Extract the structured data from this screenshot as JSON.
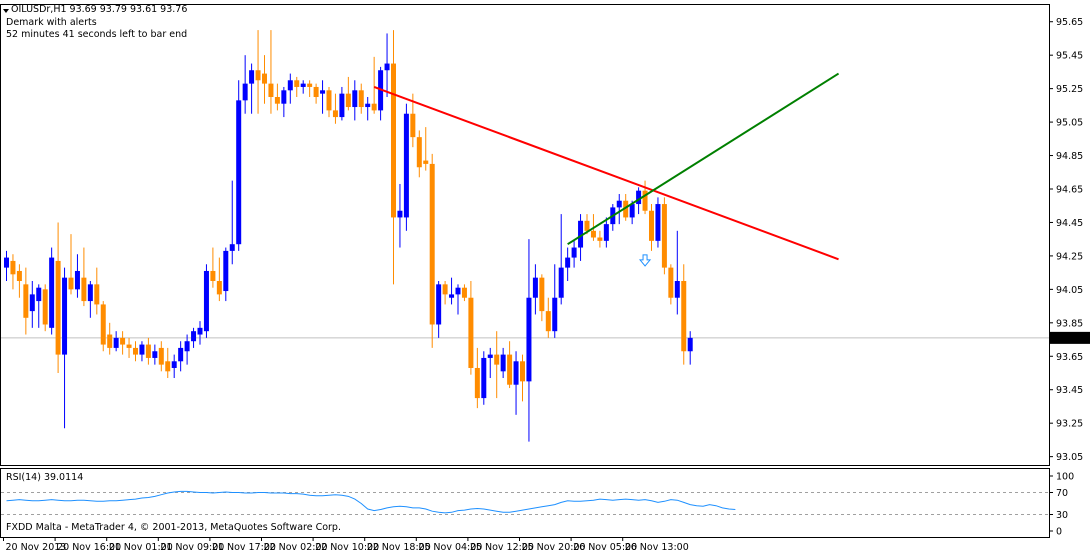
{
  "header": {
    "symbol_line": "OILUSDr,H1  93.69 93.79 93.61 93.76",
    "indicator": "Demark with alerts",
    "timer": "52 minutes 41 seconds left to bar end"
  },
  "rsi": {
    "title": "RSI(14) 39.0114",
    "levels": [
      "100",
      "70",
      "30",
      "0"
    ],
    "level_values": [
      100,
      70,
      30,
      0
    ],
    "values": [
      55,
      56,
      57,
      56,
      55,
      55,
      56,
      57,
      56,
      55,
      55,
      56,
      56,
      55,
      54,
      54,
      55,
      55,
      56,
      57,
      58,
      60,
      61,
      63,
      66,
      69,
      71,
      72,
      72,
      71,
      70,
      70,
      69,
      70,
      71,
      70,
      70,
      69,
      69,
      70,
      70,
      69,
      69,
      69,
      68,
      68,
      67,
      65,
      64,
      64,
      65,
      66,
      65,
      63,
      58,
      50,
      40,
      37,
      39,
      42,
      44,
      45,
      44,
      42,
      42,
      40,
      36,
      34,
      33,
      34,
      37,
      38,
      40,
      41,
      40,
      38,
      36,
      34,
      34,
      36,
      38,
      40,
      42,
      44,
      46,
      48,
      52,
      55,
      54,
      54,
      55,
      56,
      58,
      57,
      56,
      57,
      58,
      57,
      56,
      57,
      55,
      52,
      54,
      57,
      56,
      52,
      48,
      46,
      45,
      48,
      46,
      42,
      40,
      39
    ],
    "series_color": "#1e90ff",
    "level_color": "#a0a0a0"
  },
  "copyright": "FXDD Malta - MetaTrader 4, © 2001-2013, MetaQuotes Software Corp.",
  "colors": {
    "bull": "#0000ff",
    "bear": "#ff8c00",
    "trend_red": "#ff0000",
    "trend_green": "#008000",
    "price_line": "#c0c0c0",
    "current_price_bg": "#000000",
    "arrow": "#1e90ff"
  },
  "chart_data": {
    "type": "candlestick",
    "symbol": "OILUSDr",
    "timeframe": "H1",
    "y_ticks": [
      "95.65",
      "95.45",
      "95.25",
      "95.05",
      "94.85",
      "94.65",
      "94.45",
      "94.25",
      "94.05",
      "93.85",
      "93.65",
      "93.45",
      "93.25",
      "93.05"
    ],
    "ylim": [
      93.0,
      95.75
    ],
    "current_price": 93.76,
    "current_price_label": "93.76",
    "x_ticks": [
      "20 Nov 2013",
      "20 Nov 16:00",
      "21 Nov 01:00",
      "21 Nov 09:00",
      "21 Nov 17:00",
      "22 Nov 02:00",
      "22 Nov 10:00",
      "22 Nov 18:00",
      "25 Nov 04:00",
      "25 Nov 12:00",
      "25 Nov 20:00",
      "26 Nov 05:00",
      "26 Nov 13:00"
    ],
    "x_tick_index": [
      0,
      8,
      16,
      24,
      32,
      40,
      48,
      56,
      64,
      72,
      80,
      88,
      96
    ],
    "bars": [
      {
        "o": 94.18,
        "h": 94.28,
        "l": 94.1,
        "c": 94.24
      },
      {
        "o": 94.22,
        "h": 94.26,
        "l": 94.05,
        "c": 94.14
      },
      {
        "o": 94.16,
        "h": 94.2,
        "l": 94.0,
        "c": 94.1
      },
      {
        "o": 94.08,
        "h": 94.18,
        "l": 93.78,
        "c": 93.88
      },
      {
        "o": 93.92,
        "h": 94.1,
        "l": 93.82,
        "c": 94.02
      },
      {
        "o": 93.98,
        "h": 94.08,
        "l": 93.82,
        "c": 94.06
      },
      {
        "o": 94.05,
        "h": 94.08,
        "l": 93.8,
        "c": 93.84
      },
      {
        "o": 93.82,
        "h": 94.3,
        "l": 93.78,
        "c": 94.24
      },
      {
        "o": 94.22,
        "h": 94.45,
        "l": 93.55,
        "c": 93.66
      },
      {
        "o": 93.66,
        "h": 94.18,
        "l": 93.22,
        "c": 94.12
      },
      {
        "o": 94.12,
        "h": 94.38,
        "l": 94.02,
        "c": 94.05
      },
      {
        "o": 94.05,
        "h": 94.26,
        "l": 94.0,
        "c": 94.16
      },
      {
        "o": 94.12,
        "h": 94.3,
        "l": 93.95,
        "c": 93.98
      },
      {
        "o": 93.98,
        "h": 94.1,
        "l": 93.88,
        "c": 94.08
      },
      {
        "o": 94.08,
        "h": 94.18,
        "l": 93.9,
        "c": 93.96
      },
      {
        "o": 93.96,
        "h": 93.98,
        "l": 93.68,
        "c": 93.72
      },
      {
        "o": 93.78,
        "h": 93.85,
        "l": 93.66,
        "c": 93.7
      },
      {
        "o": 93.7,
        "h": 93.8,
        "l": 93.68,
        "c": 93.76
      },
      {
        "o": 93.76,
        "h": 93.8,
        "l": 93.66,
        "c": 93.72
      },
      {
        "o": 93.72,
        "h": 93.76,
        "l": 93.64,
        "c": 93.7
      },
      {
        "o": 93.7,
        "h": 93.74,
        "l": 93.62,
        "c": 93.66
      },
      {
        "o": 93.66,
        "h": 93.74,
        "l": 93.62,
        "c": 93.72
      },
      {
        "o": 93.72,
        "h": 93.76,
        "l": 93.6,
        "c": 93.64
      },
      {
        "o": 93.64,
        "h": 93.72,
        "l": 93.6,
        "c": 93.68
      },
      {
        "o": 93.7,
        "h": 93.74,
        "l": 93.56,
        "c": 93.6
      },
      {
        "o": 93.62,
        "h": 93.7,
        "l": 93.52,
        "c": 93.56
      },
      {
        "o": 93.58,
        "h": 93.66,
        "l": 93.52,
        "c": 93.62
      },
      {
        "o": 93.62,
        "h": 93.74,
        "l": 93.56,
        "c": 93.7
      },
      {
        "o": 93.68,
        "h": 93.78,
        "l": 93.6,
        "c": 93.74
      },
      {
        "o": 93.74,
        "h": 93.82,
        "l": 93.7,
        "c": 93.8
      },
      {
        "o": 93.78,
        "h": 93.86,
        "l": 93.72,
        "c": 93.82
      },
      {
        "o": 93.8,
        "h": 94.2,
        "l": 93.76,
        "c": 94.16
      },
      {
        "o": 94.16,
        "h": 94.3,
        "l": 94.06,
        "c": 94.1
      },
      {
        "o": 94.1,
        "h": 94.24,
        "l": 93.98,
        "c": 94.02
      },
      {
        "o": 94.04,
        "h": 94.3,
        "l": 93.98,
        "c": 94.28
      },
      {
        "o": 94.28,
        "h": 94.7,
        "l": 94.2,
        "c": 94.32
      },
      {
        "o": 94.32,
        "h": 95.3,
        "l": 94.28,
        "c": 95.18
      },
      {
        "o": 95.18,
        "h": 95.45,
        "l": 95.1,
        "c": 95.28
      },
      {
        "o": 95.28,
        "h": 95.4,
        "l": 95.1,
        "c": 95.36
      },
      {
        "o": 95.36,
        "h": 95.6,
        "l": 95.1,
        "c": 95.3
      },
      {
        "o": 95.34,
        "h": 95.45,
        "l": 95.16,
        "c": 95.28
      },
      {
        "o": 95.28,
        "h": 95.6,
        "l": 95.1,
        "c": 95.2
      },
      {
        "o": 95.2,
        "h": 95.28,
        "l": 95.12,
        "c": 95.16
      },
      {
        "o": 95.16,
        "h": 95.26,
        "l": 95.08,
        "c": 95.24
      },
      {
        "o": 95.24,
        "h": 95.34,
        "l": 95.16,
        "c": 95.3
      },
      {
        "o": 95.3,
        "h": 95.32,
        "l": 95.2,
        "c": 95.26
      },
      {
        "o": 95.26,
        "h": 95.3,
        "l": 95.22,
        "c": 95.28
      },
      {
        "o": 95.28,
        "h": 95.3,
        "l": 95.2,
        "c": 95.26
      },
      {
        "o": 95.26,
        "h": 95.28,
        "l": 95.16,
        "c": 95.2
      },
      {
        "o": 95.22,
        "h": 95.3,
        "l": 95.1,
        "c": 95.24
      },
      {
        "o": 95.24,
        "h": 95.26,
        "l": 95.08,
        "c": 95.12
      },
      {
        "o": 95.12,
        "h": 95.22,
        "l": 95.04,
        "c": 95.08
      },
      {
        "o": 95.08,
        "h": 95.26,
        "l": 95.06,
        "c": 95.22
      },
      {
        "o": 95.22,
        "h": 95.32,
        "l": 95.12,
        "c": 95.14
      },
      {
        "o": 95.14,
        "h": 95.3,
        "l": 95.06,
        "c": 95.24
      },
      {
        "o": 95.24,
        "h": 95.28,
        "l": 95.1,
        "c": 95.14
      },
      {
        "o": 95.14,
        "h": 95.2,
        "l": 95.06,
        "c": 95.16
      },
      {
        "o": 95.16,
        "h": 95.44,
        "l": 95.1,
        "c": 95.12
      },
      {
        "o": 95.12,
        "h": 95.38,
        "l": 95.06,
        "c": 95.36
      },
      {
        "o": 95.36,
        "h": 95.58,
        "l": 95.2,
        "c": 95.4
      },
      {
        "o": 95.4,
        "h": 95.6,
        "l": 94.08,
        "c": 94.48
      },
      {
        "o": 94.48,
        "h": 94.68,
        "l": 94.3,
        "c": 94.52
      },
      {
        "o": 94.48,
        "h": 95.16,
        "l": 94.4,
        "c": 95.1
      },
      {
        "o": 95.1,
        "h": 95.22,
        "l": 94.9,
        "c": 94.96
      },
      {
        "o": 94.96,
        "h": 95.0,
        "l": 94.72,
        "c": 94.78
      },
      {
        "o": 94.82,
        "h": 95.02,
        "l": 94.76,
        "c": 94.8
      },
      {
        "o": 94.8,
        "h": 94.86,
        "l": 93.7,
        "c": 93.84
      },
      {
        "o": 93.84,
        "h": 94.1,
        "l": 93.76,
        "c": 94.08
      },
      {
        "o": 94.08,
        "h": 94.1,
        "l": 93.96,
        "c": 94.02
      },
      {
        "o": 94.0,
        "h": 94.12,
        "l": 93.96,
        "c": 94.02
      },
      {
        "o": 94.02,
        "h": 94.08,
        "l": 93.9,
        "c": 94.06
      },
      {
        "o": 94.06,
        "h": 94.08,
        "l": 93.98,
        "c": 94.0
      },
      {
        "o": 94.0,
        "h": 94.1,
        "l": 93.54,
        "c": 93.58
      },
      {
        "o": 93.58,
        "h": 93.7,
        "l": 93.34,
        "c": 93.4
      },
      {
        "o": 93.4,
        "h": 93.68,
        "l": 93.36,
        "c": 93.64
      },
      {
        "o": 93.64,
        "h": 93.7,
        "l": 93.52,
        "c": 93.66
      },
      {
        "o": 93.66,
        "h": 93.8,
        "l": 93.4,
        "c": 93.6
      },
      {
        "o": 93.56,
        "h": 93.7,
        "l": 93.52,
        "c": 93.66
      },
      {
        "o": 93.66,
        "h": 93.74,
        "l": 93.46,
        "c": 93.48
      },
      {
        "o": 93.48,
        "h": 93.68,
        "l": 93.3,
        "c": 93.62
      },
      {
        "o": 93.62,
        "h": 93.66,
        "l": 93.38,
        "c": 93.5
      },
      {
        "o": 93.5,
        "h": 94.35,
        "l": 93.14,
        "c": 94.0
      },
      {
        "o": 94.0,
        "h": 94.2,
        "l": 93.9,
        "c": 94.12
      },
      {
        "o": 94.12,
        "h": 94.14,
        "l": 93.86,
        "c": 93.92
      },
      {
        "o": 93.92,
        "h": 94.0,
        "l": 93.76,
        "c": 93.8
      },
      {
        "o": 93.8,
        "h": 94.2,
        "l": 93.76,
        "c": 94.0
      },
      {
        "o": 94.0,
        "h": 94.5,
        "l": 93.96,
        "c": 94.18
      },
      {
        "o": 94.18,
        "h": 94.3,
        "l": 94.1,
        "c": 94.24
      },
      {
        "o": 94.24,
        "h": 94.34,
        "l": 94.18,
        "c": 94.3
      },
      {
        "o": 94.3,
        "h": 94.5,
        "l": 94.22,
        "c": 94.46
      },
      {
        "o": 94.46,
        "h": 94.5,
        "l": 94.38,
        "c": 94.4
      },
      {
        "o": 94.4,
        "h": 94.5,
        "l": 94.34,
        "c": 94.36
      },
      {
        "o": 94.36,
        "h": 94.4,
        "l": 94.3,
        "c": 94.34
      },
      {
        "o": 94.34,
        "h": 94.48,
        "l": 94.3,
        "c": 94.44
      },
      {
        "o": 94.44,
        "h": 94.56,
        "l": 94.4,
        "c": 94.54
      },
      {
        "o": 94.54,
        "h": 94.62,
        "l": 94.44,
        "c": 94.58
      },
      {
        "o": 94.58,
        "h": 94.62,
        "l": 94.46,
        "c": 94.48
      },
      {
        "o": 94.48,
        "h": 94.58,
        "l": 94.44,
        "c": 94.56
      },
      {
        "o": 94.56,
        "h": 94.66,
        "l": 94.5,
        "c": 94.64
      },
      {
        "o": 94.64,
        "h": 94.7,
        "l": 94.5,
        "c": 94.52
      },
      {
        "o": 94.52,
        "h": 94.56,
        "l": 94.28,
        "c": 94.34
      },
      {
        "o": 94.34,
        "h": 94.6,
        "l": 94.3,
        "c": 94.56
      },
      {
        "o": 94.56,
        "h": 94.6,
        "l": 94.14,
        "c": 94.18
      },
      {
        "o": 94.18,
        "h": 94.2,
        "l": 93.96,
        "c": 94.0
      },
      {
        "o": 94.0,
        "h": 94.4,
        "l": 93.9,
        "c": 94.1
      },
      {
        "o": 94.1,
        "h": 94.2,
        "l": 93.6,
        "c": 93.68
      },
      {
        "o": 93.68,
        "h": 93.8,
        "l": 93.6,
        "c": 93.76
      }
    ],
    "trendlines": [
      {
        "color": "red",
        "from": {
          "i": 57,
          "price": 95.26
        },
        "to": {
          "i": 129,
          "price": 94.23
        }
      },
      {
        "color": "green",
        "from": {
          "i": 87,
          "price": 94.32
        },
        "to": {
          "i": 129,
          "price": 95.34
        }
      }
    ],
    "arrow_marker": {
      "i": 99,
      "price": 94.22
    }
  }
}
